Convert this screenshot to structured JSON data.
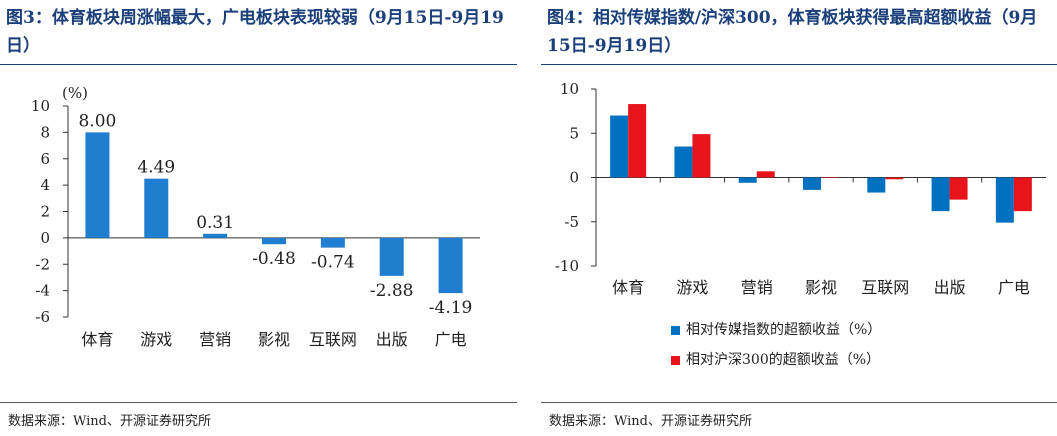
{
  "left": {
    "title": "图3：体育板块周涨幅最大，广电板块表现较弱（9月15日-9月19日）",
    "source": "数据来源：Wind、开源证券研究所",
    "chart_data": {
      "type": "bar",
      "unit_label": "(%)",
      "categories": [
        "体育",
        "游戏",
        "营销",
        "影视",
        "互联网",
        "出版",
        "广电"
      ],
      "values": [
        8.0,
        4.49,
        0.31,
        -0.48,
        -0.74,
        -2.88,
        -4.19
      ],
      "data_labels": [
        "8.00",
        "4.49",
        "0.31",
        "-0.48",
        "-0.74",
        "-2.88",
        "-4.19"
      ],
      "yticks": [
        10,
        8,
        6,
        4,
        2,
        0,
        -2,
        -4,
        -6
      ],
      "ylim": [
        -6,
        10
      ],
      "color": "#1f7ed0"
    }
  },
  "right": {
    "title": "图4：相对传媒指数/沪深300，体育板块获得最高超额收益（9月15日-9月19日）",
    "source": "数据来源：Wind、开源证券研究所",
    "chart_data": {
      "type": "bar",
      "categories": [
        "体育",
        "游戏",
        "营销",
        "影视",
        "互联网",
        "出版",
        "广电"
      ],
      "series": [
        {
          "name": "相对传媒指数的超额收益（%）",
          "color": "#0070c0",
          "values": [
            7.0,
            3.5,
            -0.6,
            -1.4,
            -1.7,
            -3.8,
            -5.1
          ]
        },
        {
          "name": "相对沪深300的超额收益（%）",
          "color": "#e8141c",
          "values": [
            8.3,
            4.9,
            0.7,
            0.0,
            -0.2,
            -2.5,
            -3.8
          ]
        }
      ],
      "yticks": [
        10,
        5,
        0,
        -5,
        -10
      ],
      "ylim": [
        -10,
        10
      ],
      "legend_position": "bottom"
    }
  }
}
